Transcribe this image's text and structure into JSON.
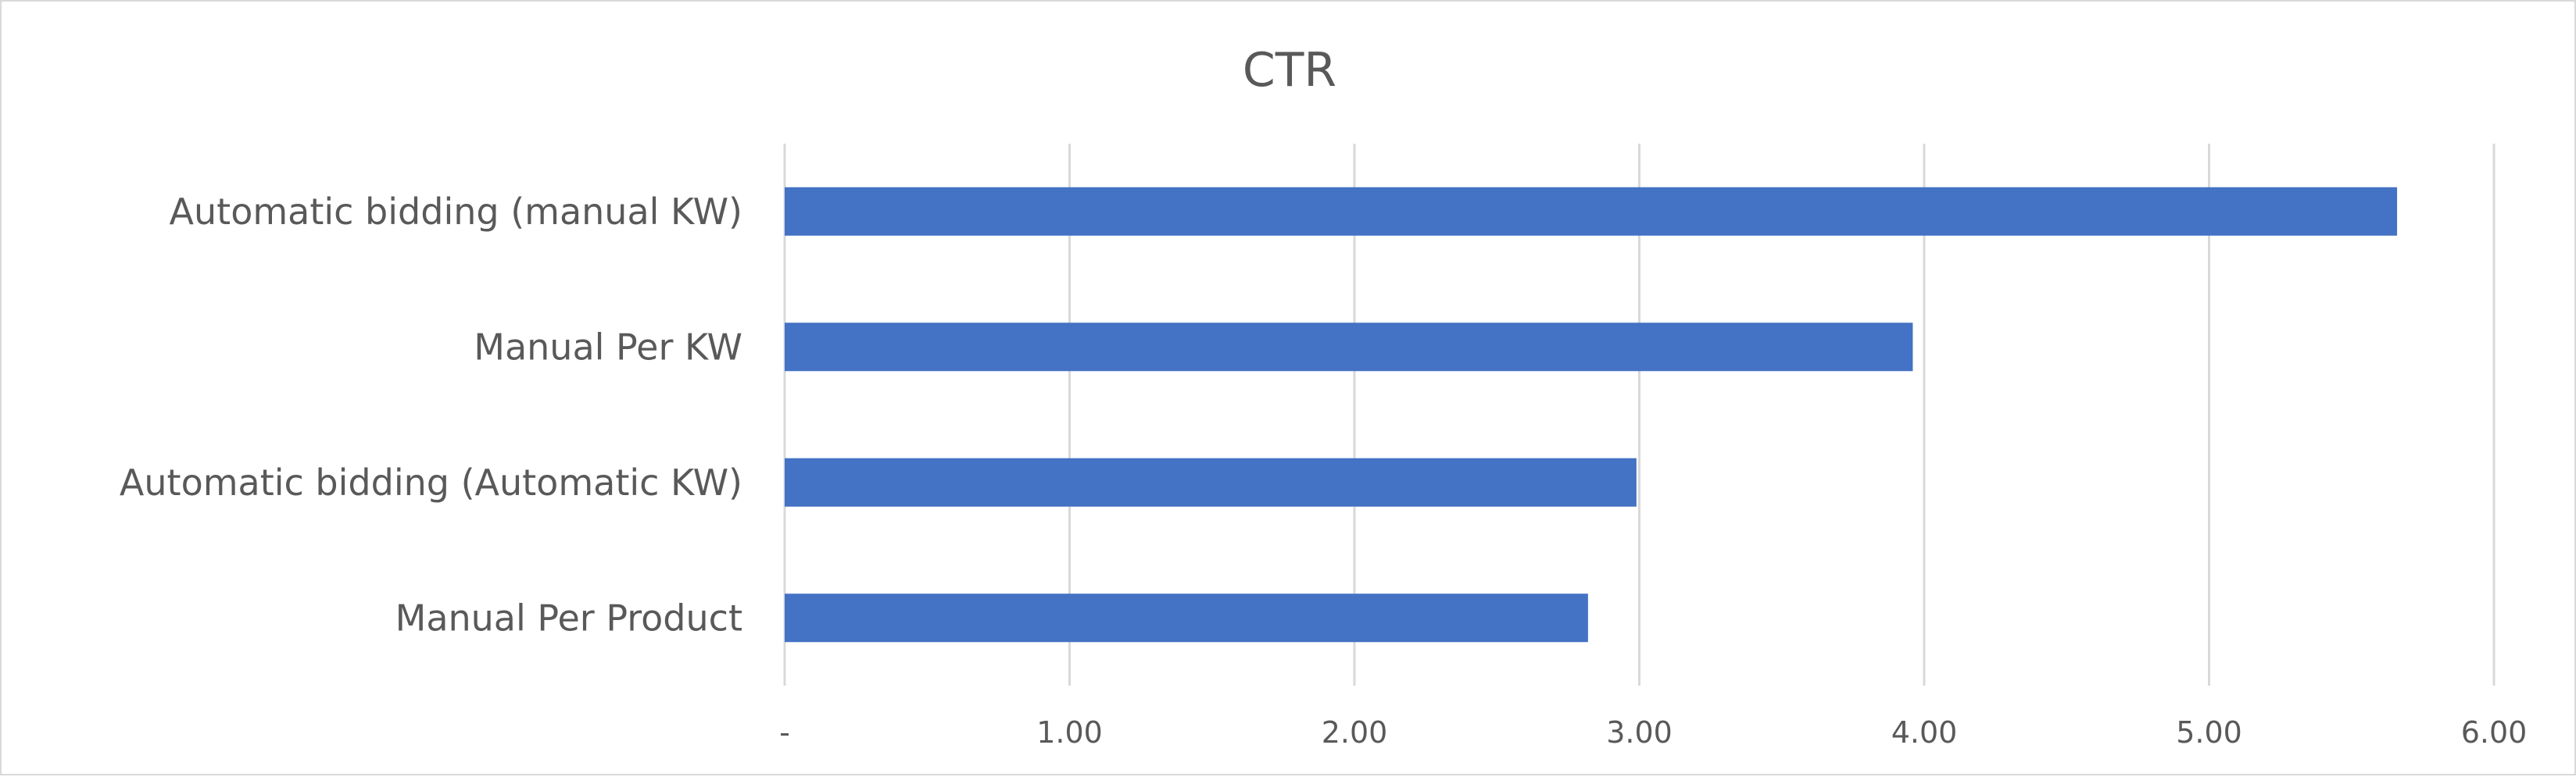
{
  "chart_data": {
    "type": "bar",
    "orientation": "horizontal",
    "title": "CTR",
    "xlabel": "",
    "ylabel": "",
    "categories": [
      "Automatic bidding (manual KW)",
      "Manual Per KW",
      "Automatic bidding (Automatic KW)",
      "Manual Per Product"
    ],
    "values": [
      5.66,
      3.96,
      2.99,
      2.82
    ],
    "xlim": [
      0,
      6
    ],
    "ticks": [
      0,
      1,
      2,
      3,
      4,
      5,
      6
    ],
    "tick_labels": [
      "-",
      "1.00",
      "2.00",
      "3.00",
      "4.00",
      "5.00",
      "6.00"
    ],
    "grid": true,
    "legend": "none",
    "bar_color": "#4472C4",
    "grid_color": "#D9D9D9",
    "text_color": "#595959"
  }
}
